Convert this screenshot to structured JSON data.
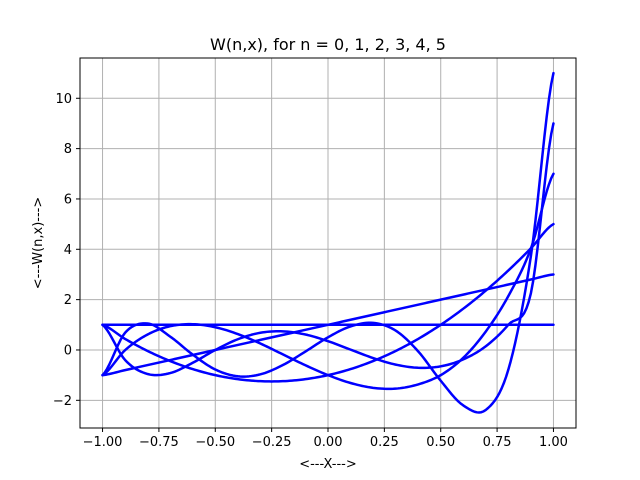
{
  "chart_data": {
    "type": "line",
    "title": "W(n,x), for n = 0, 1, 2, 3, 4, 5",
    "xlabel": "<---X--->",
    "ylabel": "<---W(n,x)--->",
    "xlim": [
      -1.1,
      1.1
    ],
    "ylim": [
      -3.1,
      11.6
    ],
    "grid": true,
    "line_color": "#0000ff",
    "x_ticks": [
      -1.0,
      -0.75,
      -0.5,
      -0.25,
      0.0,
      0.25,
      0.5,
      0.75,
      1.0
    ],
    "x_tick_labels": [
      "−1.00",
      "−0.75",
      "−0.50",
      "−0.25",
      "0.00",
      "0.25",
      "0.50",
      "0.75",
      "1.00"
    ],
    "y_ticks": [
      -2,
      0,
      2,
      4,
      6,
      8,
      10
    ],
    "y_tick_labels": [
      "−2",
      "0",
      "2",
      "4",
      "6",
      "8",
      "10"
    ],
    "x": [
      -1.0,
      -0.9,
      -0.8,
      -0.7,
      -0.6,
      -0.5,
      -0.4,
      -0.3,
      -0.2,
      -0.1,
      0.0,
      0.1,
      0.2,
      0.3,
      0.4,
      0.5,
      0.6,
      0.7,
      0.8,
      0.9,
      1.0
    ],
    "series": [
      {
        "values": [
          1,
          1,
          1,
          1,
          1,
          1,
          1,
          1,
          1,
          1,
          1,
          1,
          1,
          1,
          1,
          1,
          1,
          1,
          1,
          1,
          1
        ]
      },
      {
        "values": [
          -1,
          -0.8,
          -0.6,
          -0.4,
          -0.2,
          0,
          0.2,
          0.4,
          0.6,
          0.8,
          1,
          1.2,
          1.4,
          1.6,
          1.8,
          2,
          2.2,
          2.4,
          2.6,
          2.8,
          3
        ]
      },
      {
        "values": [
          1,
          0.44,
          -0.04,
          -0.44,
          -0.76,
          -1,
          -1.16,
          -1.24,
          -1.24,
          -1.16,
          -1,
          -0.76,
          -0.44,
          -0.04,
          0.44,
          1,
          1.64,
          2.36,
          3.16,
          4.04,
          5
        ]
      },
      {
        "values": [
          -1,
          -0.008,
          0.616,
          0.944,
          1.024,
          0.904,
          0.632,
          0.256,
          -0.176,
          -0.608,
          -1,
          -1.312,
          -1.504,
          -1.536,
          -1.368,
          -1,
          -0.312,
          0.736,
          2.144,
          4.032,
          7
        ]
      },
      {
        "values": [
          1,
          -0.398,
          -0.955,
          -0.918,
          -0.509,
          0,
          0.427,
          0.684,
          0.74,
          0.614,
          0.35,
          0.014,
          -0.32,
          -0.581,
          -0.707,
          -0.65,
          -0.374,
          0.149,
          1.003,
          2.257,
          9
        ]
      },
      {
        "values": [
          -1,
          0.683,
          1.051,
          0.532,
          -0.185,
          -0.776,
          -1.046,
          -0.968,
          -0.599,
          -0.061,
          0.504,
          0.937,
          1.076,
          0.771,
          -0.055,
          -1.223,
          -2.203,
          -2.381,
          -0.778,
          3.734,
          11
        ]
      }
    ]
  }
}
